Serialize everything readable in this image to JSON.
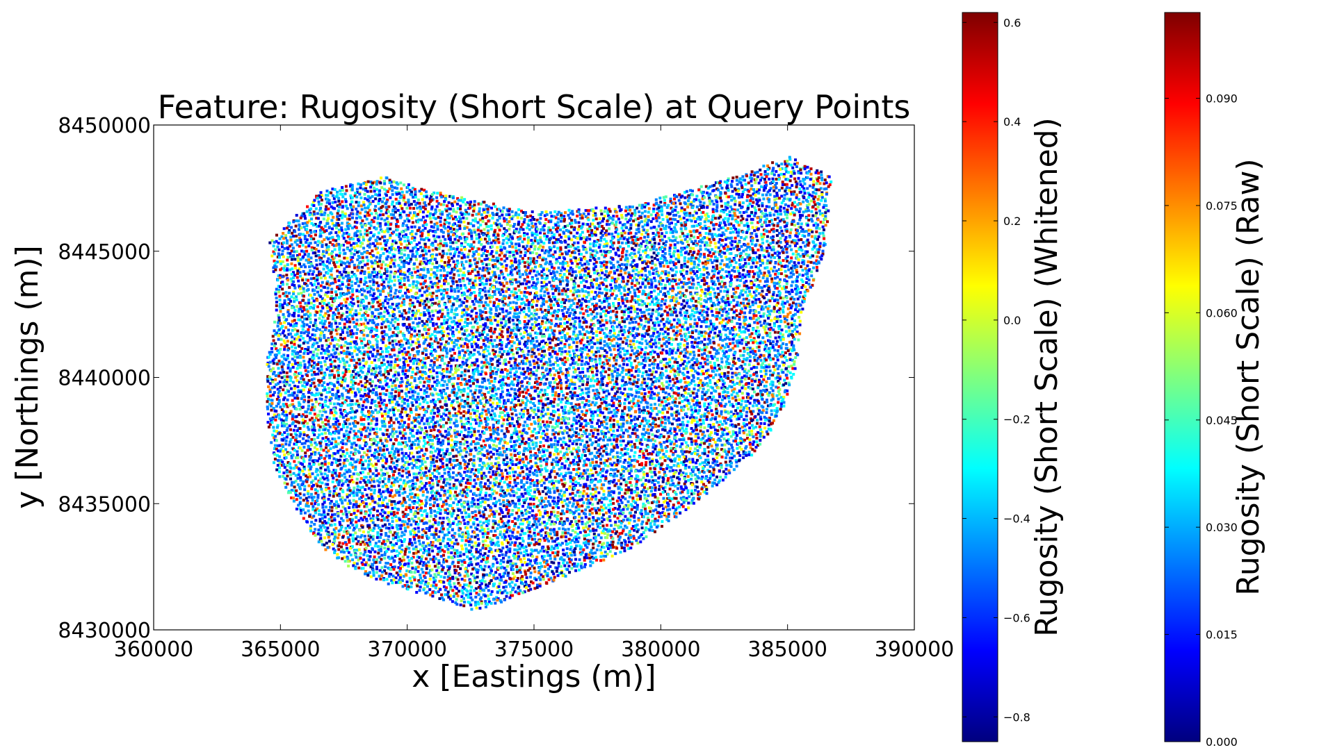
{
  "chart_data": {
    "type": "scatter",
    "title": "Feature: Rugosity (Short Scale) at Query Points",
    "xlabel": "x [Eastings (m)]",
    "ylabel": "y [Northings (m)]",
    "xlim": [
      360000,
      390000
    ],
    "ylim": [
      8430000,
      8450000
    ],
    "xticks": [
      360000,
      365000,
      370000,
      375000,
      380000,
      385000,
      390000
    ],
    "yticks": [
      8430000,
      8435000,
      8440000,
      8445000,
      8450000
    ],
    "grid": false,
    "colormap": "jet",
    "colormap_stops": [
      "#00007f",
      "#0000ff",
      "#007fff",
      "#00ffff",
      "#7fff7f",
      "#ffff00",
      "#ff7f00",
      "#ff0000",
      "#7f0000"
    ],
    "region_outline": [
      [
        364500,
        8445400
      ],
      [
        366500,
        8447400
      ],
      [
        369000,
        8448000
      ],
      [
        371500,
        8447300
      ],
      [
        375000,
        8446600
      ],
      [
        379000,
        8446900
      ],
      [
        382500,
        8447900
      ],
      [
        385000,
        8448800
      ],
      [
        386700,
        8448000
      ],
      [
        386400,
        8445000
      ],
      [
        385500,
        8442500
      ],
      [
        385300,
        8440500
      ],
      [
        384700,
        8438600
      ],
      [
        383800,
        8437200
      ],
      [
        382200,
        8435800
      ],
      [
        380700,
        8434600
      ],
      [
        378800,
        8433300
      ],
      [
        376500,
        8432300
      ],
      [
        373800,
        8431200
      ],
      [
        372600,
        8430800
      ],
      [
        371200,
        8431300
      ],
      [
        369700,
        8431700
      ],
      [
        368000,
        8432300
      ],
      [
        366500,
        8433400
      ],
      [
        365600,
        8434800
      ],
      [
        364700,
        8436500
      ],
      [
        364400,
        8438600
      ],
      [
        364400,
        8440600
      ],
      [
        364800,
        8442800
      ],
      [
        364600,
        8444600
      ]
    ],
    "colorbars": [
      {
        "label": "Rugosity (Short Scale) (Whitened)",
        "range": [
          -0.85,
          0.62
        ],
        "ticks": [
          "0.6",
          "0.4",
          "0.2",
          "0.0",
          "−0.2",
          "−0.4",
          "−0.6",
          "−0.8"
        ],
        "tick_values": [
          0.6,
          0.4,
          0.2,
          0.0,
          -0.2,
          -0.4,
          -0.6,
          -0.8
        ]
      },
      {
        "label": "Rugosity (Short Scale) (Raw)",
        "range": [
          0.0,
          0.102
        ],
        "ticks": [
          "0.090",
          "0.075",
          "0.060",
          "0.045",
          "0.030",
          "0.015",
          "0.000"
        ],
        "tick_values": [
          0.09,
          0.075,
          0.06,
          0.045,
          0.03,
          0.015,
          0.0
        ]
      }
    ]
  }
}
